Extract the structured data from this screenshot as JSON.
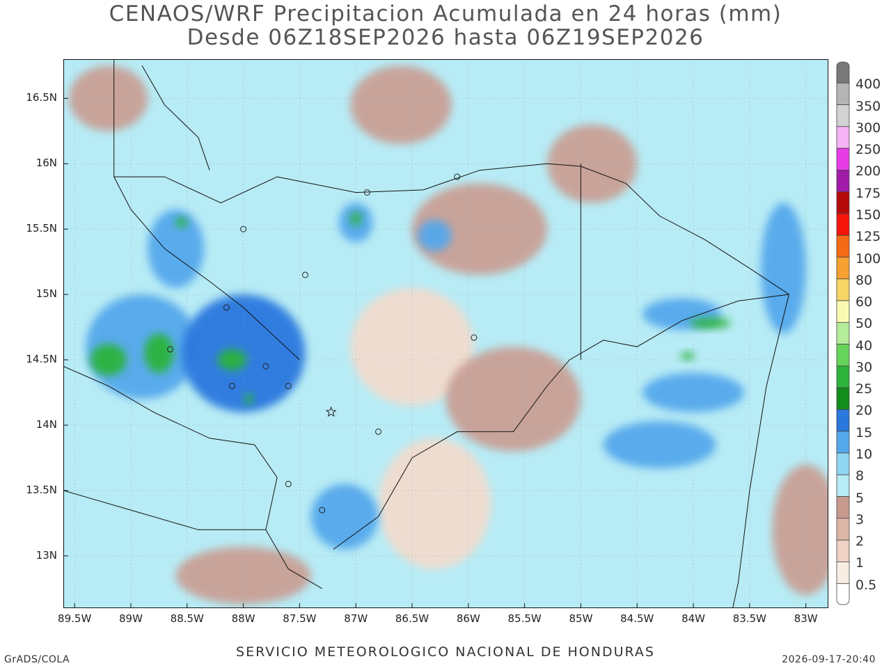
{
  "header": {
    "title_line1": "CENAOS/WRF Precipitacion Acumulada en 24 horas (mm)",
    "title_line2": "Desde 06Z18SEP2026 hasta 06Z19SEP2026"
  },
  "map": {
    "lon_range": [
      -89.6,
      -82.8
    ],
    "lat_range": [
      12.6,
      16.8
    ],
    "lat_ticks": [
      {
        "value": 16.5,
        "label": "16.5N"
      },
      {
        "value": 16.0,
        "label": "16N"
      },
      {
        "value": 15.5,
        "label": "15.5N"
      },
      {
        "value": 15.0,
        "label": "15N"
      },
      {
        "value": 14.5,
        "label": "14.5N"
      },
      {
        "value": 14.0,
        "label": "14N"
      },
      {
        "value": 13.5,
        "label": "13.5N"
      },
      {
        "value": 13.0,
        "label": "13N"
      }
    ],
    "lon_ticks": [
      {
        "value": -89.5,
        "label": "89.5W"
      },
      {
        "value": -89.0,
        "label": "89W"
      },
      {
        "value": -88.5,
        "label": "88.5W"
      },
      {
        "value": -88.0,
        "label": "88W"
      },
      {
        "value": -87.5,
        "label": "87.5W"
      },
      {
        "value": -87.0,
        "label": "87W"
      },
      {
        "value": -86.5,
        "label": "86.5W"
      },
      {
        "value": -86.0,
        "label": "86W"
      },
      {
        "value": -85.5,
        "label": "85.5W"
      },
      {
        "value": -85.0,
        "label": "85W"
      },
      {
        "value": -84.5,
        "label": "84.5W"
      },
      {
        "value": -84.0,
        "label": "84W"
      },
      {
        "value": -83.5,
        "label": "83.5W"
      },
      {
        "value": -83.0,
        "label": "83W"
      }
    ],
    "background_color": "#b7ebf5",
    "rain_regions": [
      {
        "lon": -88.0,
        "lat": 14.55,
        "level": 4,
        "rx": 0.55,
        "ry": 0.45
      },
      {
        "lon": -88.9,
        "lat": 14.6,
        "level": 3,
        "rx": 0.5,
        "ry": 0.4
      },
      {
        "lon": -88.6,
        "lat": 15.35,
        "level": 3,
        "rx": 0.25,
        "ry": 0.3
      },
      {
        "lon": -87.0,
        "lat": 15.55,
        "level": 3,
        "rx": 0.15,
        "ry": 0.15
      },
      {
        "lon": -86.3,
        "lat": 15.45,
        "level": 3,
        "rx": 0.15,
        "ry": 0.12
      },
      {
        "lon": -84.1,
        "lat": 14.85,
        "level": 3,
        "rx": 0.35,
        "ry": 0.12
      },
      {
        "lon": -84.0,
        "lat": 14.25,
        "level": 3,
        "rx": 0.45,
        "ry": 0.15
      },
      {
        "lon": -84.3,
        "lat": 13.85,
        "level": 3,
        "rx": 0.5,
        "ry": 0.18
      },
      {
        "lon": -83.2,
        "lat": 15.2,
        "level": 3,
        "rx": 0.2,
        "ry": 0.5
      },
      {
        "lon": -87.1,
        "lat": 13.3,
        "level": 3,
        "rx": 0.3,
        "ry": 0.25
      },
      {
        "lon": -89.2,
        "lat": 14.5,
        "level": 5,
        "rx": 0.16,
        "ry": 0.12
      },
      {
        "lon": -88.75,
        "lat": 14.55,
        "level": 5,
        "rx": 0.13,
        "ry": 0.15
      },
      {
        "lon": -88.1,
        "lat": 14.5,
        "level": 5,
        "rx": 0.13,
        "ry": 0.08
      },
      {
        "lon": -87.95,
        "lat": 14.2,
        "level": 5,
        "rx": 0.04,
        "ry": 0.04
      },
      {
        "lon": -88.55,
        "lat": 15.55,
        "level": 5,
        "rx": 0.05,
        "ry": 0.04
      },
      {
        "lon": -87.0,
        "lat": 15.58,
        "level": 5,
        "rx": 0.05,
        "ry": 0.05
      },
      {
        "lon": -83.85,
        "lat": 14.78,
        "level": 5,
        "rx": 0.18,
        "ry": 0.04
      },
      {
        "lon": -84.05,
        "lat": 14.53,
        "level": 5,
        "rx": 0.06,
        "ry": 0.03
      },
      {
        "lon": -86.5,
        "lat": 14.6,
        "level": 0,
        "rx": 0.55,
        "ry": 0.45
      },
      {
        "lon": -86.3,
        "lat": 13.4,
        "level": 0,
        "rx": 0.5,
        "ry": 0.5
      },
      {
        "lon": -85.9,
        "lat": 15.5,
        "level": 1,
        "rx": 0.6,
        "ry": 0.35
      },
      {
        "lon": -85.6,
        "lat": 14.2,
        "level": 1,
        "rx": 0.6,
        "ry": 0.4
      },
      {
        "lon": -86.6,
        "lat": 16.45,
        "level": 1,
        "rx": 0.45,
        "ry": 0.3
      },
      {
        "lon": -88.0,
        "lat": 12.85,
        "level": 1,
        "rx": 0.6,
        "ry": 0.22
      },
      {
        "lon": -83.0,
        "lat": 13.2,
        "level": 1,
        "rx": 0.3,
        "ry": 0.5
      },
      {
        "lon": -89.2,
        "lat": 16.5,
        "level": 1,
        "rx": 0.35,
        "ry": 0.25
      },
      {
        "lon": -84.9,
        "lat": 16.0,
        "level": 1,
        "rx": 0.4,
        "ry": 0.3
      }
    ],
    "border_paths": [
      [
        [
          -89.15,
          15.9
        ],
        [
          -88.7,
          15.9
        ],
        [
          -88.2,
          15.7
        ],
        [
          -87.7,
          15.9
        ],
        [
          -87.0,
          15.78
        ],
        [
          -86.4,
          15.8
        ],
        [
          -85.9,
          15.95
        ],
        [
          -85.3,
          16.0
        ],
        [
          -85.0,
          15.98
        ],
        [
          -84.6,
          15.85
        ],
        [
          -84.3,
          15.6
        ],
        [
          -83.9,
          15.42
        ],
        [
          -83.5,
          15.2
        ],
        [
          -83.15,
          15.0
        ]
      ],
      [
        [
          -89.15,
          15.9
        ],
        [
          -89.0,
          15.65
        ],
        [
          -88.7,
          15.35
        ],
        [
          -88.3,
          15.1
        ],
        [
          -88.0,
          14.9
        ],
        [
          -87.5,
          14.5
        ]
      ],
      [
        [
          -83.15,
          15.0
        ],
        [
          -83.6,
          14.95
        ],
        [
          -84.1,
          14.8
        ],
        [
          -84.5,
          14.6
        ],
        [
          -84.8,
          14.65
        ],
        [
          -85.1,
          14.5
        ],
        [
          -85.3,
          14.3
        ],
        [
          -85.6,
          13.95
        ],
        [
          -86.1,
          13.95
        ],
        [
          -86.5,
          13.75
        ],
        [
          -86.8,
          13.3
        ],
        [
          -87.2,
          13.05
        ]
      ],
      [
        [
          -89.6,
          14.45
        ],
        [
          -89.2,
          14.3
        ],
        [
          -88.8,
          14.1
        ],
        [
          -88.3,
          13.9
        ],
        [
          -87.9,
          13.85
        ],
        [
          -87.7,
          13.6
        ],
        [
          -87.8,
          13.2
        ]
      ],
      [
        [
          -89.15,
          16.8
        ],
        [
          -89.15,
          15.9
        ]
      ],
      [
        [
          -85.0,
          16.0
        ],
        [
          -85.0,
          15.0
        ],
        [
          -85.0,
          14.5
        ]
      ],
      [
        [
          -89.6,
          13.5
        ],
        [
          -89.0,
          13.35
        ],
        [
          -88.4,
          13.2
        ],
        [
          -87.8,
          13.2
        ],
        [
          -87.6,
          12.9
        ],
        [
          -87.3,
          12.75
        ]
      ],
      [
        [
          -83.15,
          15.0
        ],
        [
          -83.35,
          14.3
        ],
        [
          -83.5,
          13.5
        ],
        [
          -83.6,
          12.8
        ],
        [
          -83.65,
          12.6
        ]
      ],
      [
        [
          -88.9,
          16.75
        ],
        [
          -88.7,
          16.45
        ],
        [
          -88.4,
          16.2
        ],
        [
          -88.3,
          15.95
        ]
      ]
    ],
    "markers": [
      {
        "lon": -88.0,
        "lat": 15.5,
        "type": "circle"
      },
      {
        "lon": -86.9,
        "lat": 15.78,
        "type": "circle"
      },
      {
        "lon": -86.1,
        "lat": 15.9,
        "type": "circle"
      },
      {
        "lon": -87.45,
        "lat": 15.15,
        "type": "circle"
      },
      {
        "lon": -88.15,
        "lat": 14.9,
        "type": "circle"
      },
      {
        "lon": -88.65,
        "lat": 14.58,
        "type": "circle"
      },
      {
        "lon": -87.8,
        "lat": 14.45,
        "type": "circle"
      },
      {
        "lon": -88.1,
        "lat": 14.3,
        "type": "circle"
      },
      {
        "lon": -87.6,
        "lat": 14.3,
        "type": "circle"
      },
      {
        "lon": -85.95,
        "lat": 14.67,
        "type": "circle"
      },
      {
        "lon": -87.3,
        "lat": 13.35,
        "type": "circle"
      },
      {
        "lon": -87.6,
        "lat": 13.55,
        "type": "circle"
      },
      {
        "lon": -86.8,
        "lat": 13.95,
        "type": "circle"
      },
      {
        "lon": -87.22,
        "lat": 14.1,
        "type": "star"
      }
    ]
  },
  "colorbar": {
    "levels": [
      {
        "label": "0.5",
        "color": "#ffffff"
      },
      {
        "label": "1",
        "color": "#f8ede3"
      },
      {
        "label": "2",
        "color": "#edd2c5"
      },
      {
        "label": "3",
        "color": "#dcb7a8"
      },
      {
        "label": "5",
        "color": "#c79a8e"
      },
      {
        "label": "8",
        "color": "#b7ebf5"
      },
      {
        "label": "10",
        "color": "#8fd6f0"
      },
      {
        "label": "15",
        "color": "#55a8ec"
      },
      {
        "label": "20",
        "color": "#2a78de"
      },
      {
        "label": "25",
        "color": "#148c1e"
      },
      {
        "label": "30",
        "color": "#2cb43a"
      },
      {
        "label": "40",
        "color": "#66d45a"
      },
      {
        "label": "50",
        "color": "#b5ec9c"
      },
      {
        "label": "60",
        "color": "#fafab4"
      },
      {
        "label": "80",
        "color": "#f5d664"
      },
      {
        "label": "100",
        "color": "#f5a030"
      },
      {
        "label": "125",
        "color": "#f56a14"
      },
      {
        "label": "150",
        "color": "#f5140a"
      },
      {
        "label": "175",
        "color": "#b40a0a"
      },
      {
        "label": "200",
        "color": "#a01ca8"
      },
      {
        "label": "250",
        "color": "#e63ce6"
      },
      {
        "label": "300",
        "color": "#f5b4f5"
      },
      {
        "label": "350",
        "color": "#d2d2d2"
      },
      {
        "label": "400",
        "color": "#b4b4b4"
      }
    ],
    "top_color": "#787878"
  },
  "footer": {
    "center": "SERVICIO METEOROLOGICO NACIONAL DE HONDURAS",
    "left": "GrADS/COLA",
    "right": "2026-09-17-20:40"
  },
  "rain_palette": [
    "#f2dccf",
    "#c9a096",
    "#8fd6f0",
    "#55a8ec",
    "#2a78de",
    "#2cb43a"
  ]
}
